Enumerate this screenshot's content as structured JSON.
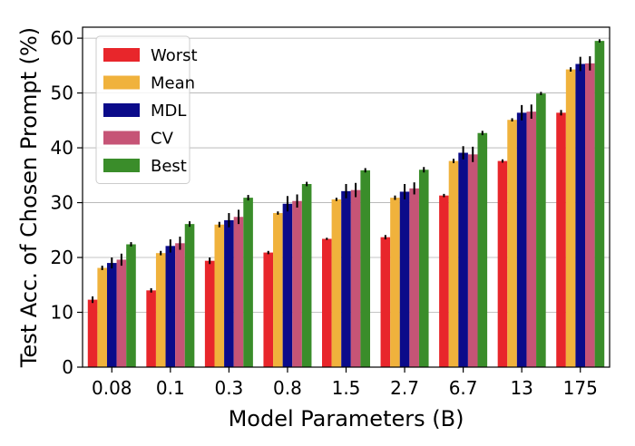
{
  "chart_data": {
    "type": "bar",
    "title": "",
    "xlabel": "Model Parameters (B)",
    "ylabel": "Test Acc. of Chosen Prompt (%)",
    "ylim": [
      0,
      62
    ],
    "yticks": [
      0,
      10,
      20,
      30,
      40,
      50,
      60
    ],
    "grid": "horizontal",
    "legend_position": "top-left",
    "categories": [
      "0.08",
      "0.1",
      "0.3",
      "0.8",
      "1.5",
      "2.7",
      "6.7",
      "13",
      "175"
    ],
    "series": [
      {
        "name": "Worst",
        "color": "#e8262b",
        "values": [
          12.3,
          14.0,
          19.4,
          20.9,
          23.4,
          23.7,
          31.3,
          37.6,
          46.4
        ],
        "errors": [
          0.6,
          0.4,
          0.6,
          0.3,
          0.2,
          0.4,
          0.3,
          0.3,
          0.5
        ]
      },
      {
        "name": "Mean",
        "color": "#f0b23c",
        "values": [
          18.1,
          20.8,
          26.0,
          28.1,
          30.6,
          30.9,
          37.6,
          45.1,
          54.3
        ],
        "errors": [
          0.4,
          0.4,
          0.5,
          0.3,
          0.3,
          0.4,
          0.4,
          0.3,
          0.4
        ]
      },
      {
        "name": "MDL",
        "color": "#0b0b8a",
        "values": [
          19.0,
          22.1,
          26.8,
          29.8,
          32.1,
          32.0,
          39.1,
          46.4,
          55.3
        ],
        "errors": [
          1.0,
          1.2,
          1.3,
          1.4,
          1.3,
          1.4,
          1.2,
          1.4,
          1.3
        ]
      },
      {
        "name": "CV",
        "color": "#c65476",
        "values": [
          19.6,
          22.6,
          27.4,
          30.3,
          32.3,
          32.6,
          38.8,
          46.6,
          55.4
        ],
        "errors": [
          1.1,
          1.2,
          1.3,
          1.2,
          1.3,
          1.1,
          1.4,
          1.3,
          1.3
        ]
      },
      {
        "name": "Best",
        "color": "#3a8d2a",
        "values": [
          22.4,
          26.1,
          30.9,
          33.4,
          35.9,
          36.0,
          42.7,
          49.9,
          59.5
        ],
        "errors": [
          0.4,
          0.5,
          0.5,
          0.4,
          0.4,
          0.5,
          0.4,
          0.3,
          0.3
        ]
      }
    ]
  }
}
